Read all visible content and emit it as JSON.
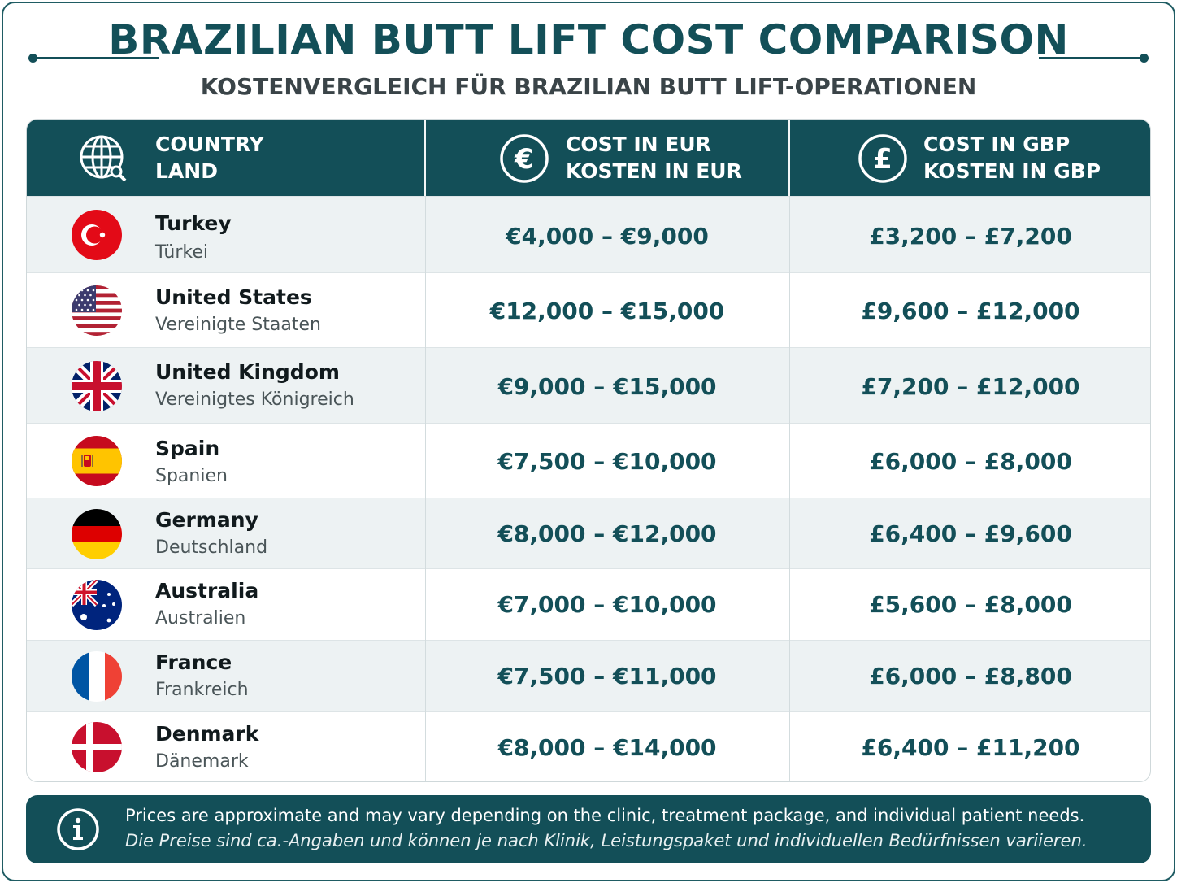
{
  "header": {
    "title": "BRAZILIAN BUTT LIFT COST COMPARISON",
    "subtitle": "KOSTENVERGLEICH FÜR BRAZILIAN BUTT LIFT-OPERATIONEN"
  },
  "table": {
    "columns": [
      {
        "icon": "globe-icon",
        "label_en": "COUNTRY",
        "label_de": "LAND"
      },
      {
        "icon": "euro-icon",
        "label_en": "COST IN EUR",
        "label_de": "KOSTEN IN EUR"
      },
      {
        "icon": "pound-icon",
        "label_en": "COST IN GBP",
        "label_de": "KOSTEN IN GBP"
      }
    ],
    "rows": [
      {
        "flag": "turkey-flag-icon",
        "name": "Turkey",
        "name_de": "Türkei",
        "eur": "€4,000 – €9,000",
        "gbp": "£3,200 – £7,200"
      },
      {
        "flag": "usa-flag-icon",
        "name": "United States",
        "name_de": "Vereinigte Staaten",
        "eur": "€12,000 – €15,000",
        "gbp": "£9,600 – £12,000"
      },
      {
        "flag": "uk-flag-icon",
        "name": "United Kingdom",
        "name_de": "Vereinigtes Königreich",
        "eur": "€9,000 – €15,000",
        "gbp": "£7,200 – £12,000"
      },
      {
        "flag": "spain-flag-icon",
        "name": "Spain",
        "name_de": "Spanien",
        "eur": "€7,500 – €10,000",
        "gbp": "£6,000 – £8,000"
      },
      {
        "flag": "germany-flag-icon",
        "name": "Germany",
        "name_de": "Deutschland",
        "eur": "€8,000 – €12,000",
        "gbp": "£6,400 – £9,600"
      },
      {
        "flag": "australia-flag-icon",
        "name": "Australia",
        "name_de": "Australien",
        "eur": "€7,000 – €10,000",
        "gbp": "£5,600 – £8,000"
      },
      {
        "flag": "france-flag-icon",
        "name": "France",
        "name_de": "Frankreich",
        "eur": "€7,500 – €11,000",
        "gbp": "£6,000 – £8,800"
      },
      {
        "flag": "denmark-flag-icon",
        "name": "Denmark",
        "name_de": "Dänemark",
        "eur": "€8,000 – €14,000",
        "gbp": "£6,400 – £11,200"
      }
    ]
  },
  "note": {
    "icon": "info-icon",
    "text_en": "Prices are approximate and may vary depending on the clinic, treatment package, and individual patient needs.",
    "text_de": "Die Preise sind ca.-Angaben und können je nach Klinik, Leistungspaket und individuellen Bedürfnissen variieren."
  },
  "colors": {
    "primary": "#134f58",
    "row_alt": "#edf2f3",
    "text": "#111a1d"
  }
}
